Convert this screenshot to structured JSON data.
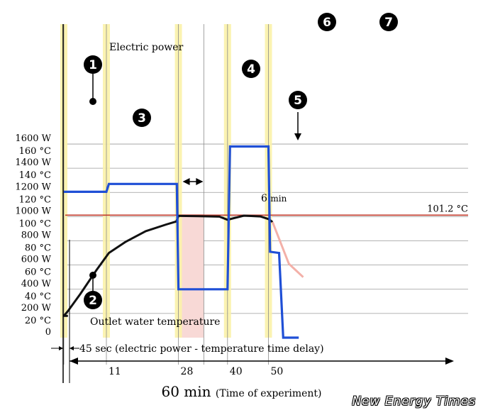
{
  "chart_data": {
    "type": "line",
    "title": "",
    "x_range_min": [
      0,
      60
    ],
    "x_ticks": [
      11,
      28,
      40,
      50
    ],
    "y_left_ticks_power": [
      "1600 W",
      "1400 W",
      "1200 W",
      "1000 W",
      "800 W",
      "600 W",
      "400 W",
      "200 W",
      "0"
    ],
    "y_left_ticks_temp": [
      "160 °C",
      "140 °C",
      "120 °C",
      "100 °C",
      "80 °C",
      "60 °C",
      "40 °C",
      "20 °C"
    ],
    "power_range_W": [
      0,
      1600
    ],
    "temp_range_C": [
      0,
      160
    ],
    "series": [
      {
        "name": "Electric power",
        "color": "#1f4fd6",
        "unit": "W",
        "x": [
          0,
          10.4,
          11,
          27.6,
          28,
          40,
          40.6,
          50,
          50.4,
          52.6,
          53.6,
          57.4
        ],
        "y": [
          1205,
          1205,
          1270,
          1270,
          400,
          400,
          1580,
          1580,
          710,
          700,
          0,
          0
        ]
      },
      {
        "name": "Outlet water temperature",
        "color": "#000000",
        "unit": "°C",
        "x": [
          0,
          1,
          4,
          8,
          11,
          15,
          20,
          25,
          27.5,
          28,
          33,
          38,
          40,
          44,
          48,
          50,
          51
        ],
        "y": [
          18,
          22,
          36,
          56,
          70,
          79,
          88,
          93.5,
          96,
          100.6,
          100.4,
          100,
          97.4,
          100.8,
          100.2,
          98,
          95.5
        ]
      },
      {
        "name": "",
        "color": "#f3b0a8",
        "unit": "°C",
        "x": [
          51,
          55,
          58.5
        ],
        "y": [
          95.5,
          61,
          50
        ]
      }
    ],
    "reference_line": {
      "label": "101.2 °C",
      "value_C": 101.2,
      "color": "#c0392b"
    },
    "time_markers_min": [
      0,
      10.4,
      28,
      40,
      50
    ],
    "shaded_interval_min": [
      28,
      34.2
    ],
    "annotations": {
      "electric_power": "Electric power",
      "outlet_temp": "Outlet water temperature",
      "six_min": "6",
      "six_min_unit": "min",
      "delay": "45 sec (electric power - temperature time delay)"
    },
    "markers": [
      {
        "n": "1",
        "label": "❶"
      },
      {
        "n": "2",
        "label": "❷"
      },
      {
        "n": "3",
        "label": "❸"
      },
      {
        "n": "4",
        "label": "❹"
      },
      {
        "n": "5",
        "label": "❺"
      },
      {
        "n": "6",
        "label": "❻"
      },
      {
        "n": "7",
        "label": "❼"
      }
    ],
    "xlabel_main": "60 min",
    "xlabel_sub": "(Time of experiment)",
    "watermark": "New Energy Times"
  }
}
